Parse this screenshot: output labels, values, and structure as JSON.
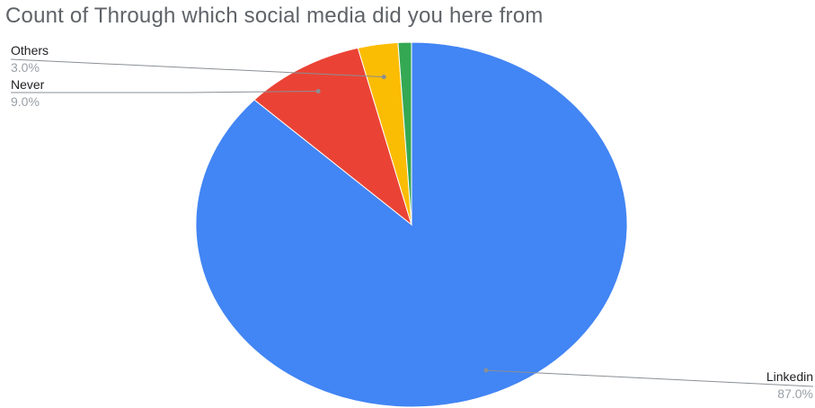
{
  "chart_data": {
    "type": "pie",
    "title": "Count of Through which social media did you here from",
    "slices": [
      {
        "label": "Linkedin",
        "value": 87.0,
        "display": "87.0%",
        "color": "#4285f4"
      },
      {
        "label": "Never",
        "value": 9.0,
        "display": "9.0%",
        "color": "#ea4335"
      },
      {
        "label": "Others",
        "value": 3.0,
        "display": "3.0%",
        "color": "#fbbc04"
      },
      {
        "label": "",
        "value": 1.0,
        "display": "",
        "color": "#34a853"
      }
    ]
  }
}
